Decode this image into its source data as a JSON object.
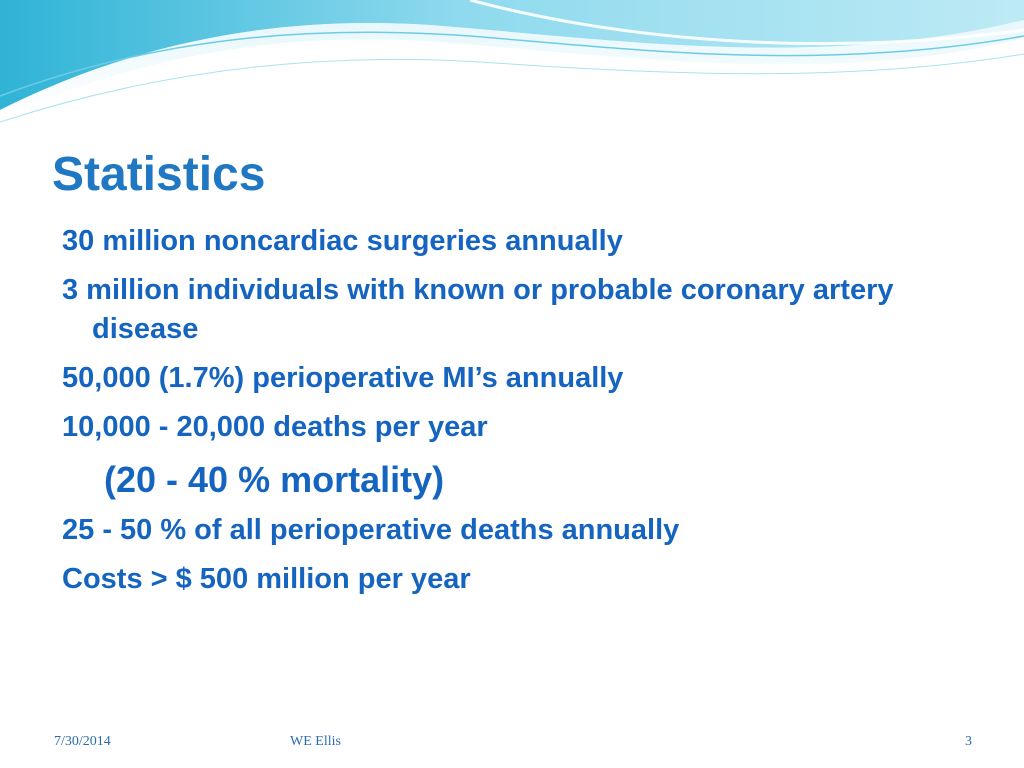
{
  "slide": {
    "title": "Statistics",
    "bullets": [
      "30 million noncardiac surgeries annually",
      "3 million individuals with known or probable coronary artery disease",
      "50,000 (1.7%) perioperative MI’s annually",
      "10,000 - 20,000 deaths per year",
      "(20 - 40 % mortality)",
      "25 - 50 % of all perioperative deaths annually",
      "Costs > $ 500 million per year"
    ]
  },
  "footer": {
    "date": "7/30/2014",
    "author": "WE Ellis",
    "page_number": "3"
  },
  "colors": {
    "title": "#1f78c1",
    "body_text": "#1565c0",
    "wave_light": "#bfe9f3",
    "wave_mid": "#7fd3ea",
    "wave_dark": "#2fb3d6"
  }
}
